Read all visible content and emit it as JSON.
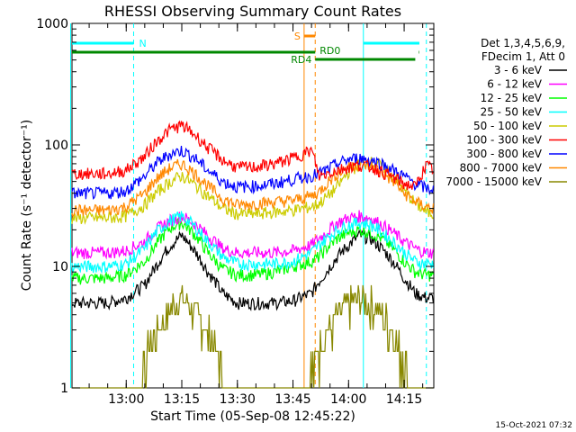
{
  "chart_data": {
    "type": "line",
    "title": "RHESSI Observing Summary Count Rates",
    "xlabel": "Start Time (05-Sep-08 12:45:22)",
    "ylabel": "Count Rate (s⁻¹ detector⁻¹)",
    "y_scale": "log",
    "ylim": [
      1,
      1000
    ],
    "xlim": [
      "12:45",
      "14:23"
    ],
    "x_ticks": [
      "13:00",
      "13:15",
      "13:30",
      "13:45",
      "14:00",
      "14:15"
    ],
    "y_ticks": [
      "1",
      "10",
      "100",
      "1000"
    ],
    "legend": {
      "placement": "right",
      "header_lines": [
        "Det 1,3,4,5,6,9,",
        "FDecim 1, Att 0"
      ],
      "entries": [
        {
          "label": "3 - 6 keV",
          "color": "#000000"
        },
        {
          "label": "6 - 12 keV",
          "color": "#ff00ff"
        },
        {
          "label": "12 - 25 keV",
          "color": "#00ff00"
        },
        {
          "label": "25 - 50 keV",
          "color": "#00ffff"
        },
        {
          "label": "50 - 100 keV",
          "color": "#cccc00"
        },
        {
          "label": "100 - 300 keV",
          "color": "#ff0000"
        },
        {
          "label": "300 - 800 keV",
          "color": "#0000ff"
        },
        {
          "label": "800 - 7000 keV",
          "color": "#ff8800"
        },
        {
          "label": "7000 - 15000 keV",
          "color": "#888800"
        }
      ]
    },
    "x": [
      "12:45",
      "12:50",
      "12:55",
      "13:00",
      "13:05",
      "13:08",
      "13:12",
      "13:15",
      "13:18",
      "13:22",
      "13:26",
      "13:30",
      "13:35",
      "13:40",
      "13:45",
      "13:50",
      "13:52",
      "13:54",
      "13:57",
      "14:00",
      "14:03",
      "14:06",
      "14:09",
      "14:12",
      "14:15",
      "14:18",
      "14:21",
      "14:23"
    ],
    "series": [
      {
        "name": "3 - 6 keV",
        "color": "#000000",
        "values": [
          5,
          5,
          5,
          5.5,
          7,
          10,
          15,
          18,
          14,
          9,
          6,
          5,
          5,
          5,
          5.2,
          6,
          7.5,
          9,
          12,
          15,
          18,
          17,
          14,
          11,
          8,
          6,
          5.5,
          5.5
        ]
      },
      {
        "name": "6 - 12 keV",
        "color": "#ff00ff",
        "values": [
          13,
          13,
          13,
          13.5,
          16,
          20,
          24,
          26,
          23,
          18,
          14,
          13,
          13,
          13,
          13.5,
          15,
          17,
          19,
          23,
          25,
          26,
          25,
          22,
          19,
          16,
          14,
          13,
          13
        ]
      },
      {
        "name": "12 - 25 keV",
        "color": "#00ff00",
        "values": [
          8,
          8,
          8,
          8.5,
          11,
          15,
          21,
          23,
          19,
          13,
          9.5,
          8.5,
          8.5,
          9,
          10,
          11,
          12,
          14,
          17,
          19,
          20,
          19,
          17,
          14,
          11,
          9,
          8.5,
          8.5
        ]
      },
      {
        "name": "25 - 50 keV",
        "color": "#00ffff",
        "values": [
          10,
          10,
          10,
          10.5,
          14,
          19,
          24,
          26,
          22,
          16,
          12,
          10.5,
          10.5,
          10.5,
          11,
          13,
          15,
          17,
          20,
          22,
          23,
          22,
          19,
          16,
          13,
          11,
          10.5,
          10.5
        ]
      },
      {
        "name": "50 - 100 keV",
        "color": "#cccc00",
        "values": [
          25,
          25,
          25,
          26,
          32,
          40,
          50,
          56,
          48,
          38,
          30,
          27,
          27,
          28,
          29,
          31,
          33,
          37,
          45,
          60,
          70,
          72,
          68,
          55,
          42,
          33,
          28,
          27
        ]
      },
      {
        "name": "100 - 300 keV",
        "color": "#ff0000",
        "values": [
          58,
          58,
          58,
          62,
          80,
          105,
          135,
          145,
          125,
          95,
          75,
          65,
          66,
          70,
          78,
          90,
          55,
          58,
          62,
          66,
          68,
          66,
          60,
          54,
          48,
          45,
          68,
          62
        ]
      },
      {
        "name": "300 - 800 keV",
        "color": "#0000ff",
        "values": [
          40,
          40,
          40,
          42,
          55,
          70,
          85,
          90,
          80,
          62,
          50,
          45,
          46,
          48,
          52,
          56,
          58,
          62,
          70,
          76,
          78,
          75,
          70,
          62,
          55,
          48,
          44,
          43
        ]
      },
      {
        "name": "800 - 7000 keV",
        "color": "#ff8800",
        "values": [
          29,
          29,
          29,
          31,
          40,
          52,
          65,
          70,
          60,
          46,
          36,
          32,
          33,
          34,
          35,
          38,
          41,
          48,
          58,
          66,
          70,
          68,
          60,
          50,
          40,
          34,
          31,
          30
        ]
      },
      {
        "name": "7000 - 15000 keV",
        "color": "#888800",
        "values": [
          0,
          0,
          0,
          0,
          1.6,
          2.8,
          4.5,
          5.5,
          4.5,
          2.8,
          1.4,
          0,
          0,
          0,
          0,
          1.5,
          2,
          2.6,
          3.8,
          4.8,
          5.5,
          5,
          4,
          2.8,
          1.6,
          1.1,
          0,
          0
        ]
      }
    ],
    "status_bars": [
      {
        "label": "N",
        "color": "#00ffff"
      },
      {
        "label": "S",
        "color": "#ff8800"
      },
      {
        "label": "RD0",
        "color": "#008800"
      },
      {
        "label": "RD4",
        "color": "#008800"
      }
    ],
    "markers": [
      {
        "time": "12:45",
        "color": "#00ffff",
        "style": "solid"
      },
      {
        "time": "13:02",
        "color": "#00ffff",
        "style": "dashed"
      },
      {
        "time": "13:48",
        "color": "#ff8800",
        "style": "solid"
      },
      {
        "time": "13:51",
        "color": "#ff8800",
        "style": "dashed"
      },
      {
        "time": "14:04",
        "color": "#00ffff",
        "style": "solid"
      },
      {
        "time": "14:21",
        "color": "#00ffff",
        "style": "dashed"
      }
    ]
  },
  "footer": {
    "timestamp": "15-Oct-2021 07:32"
  }
}
